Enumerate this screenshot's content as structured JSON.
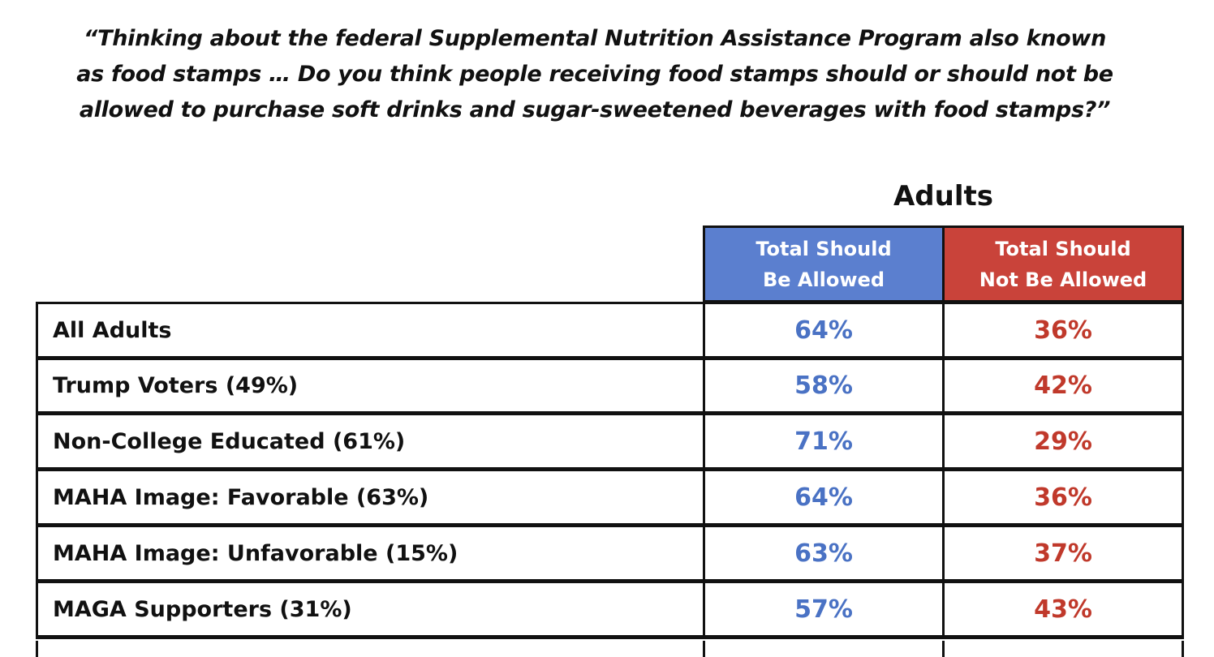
{
  "question": {
    "lines": [
      "“Thinking about the federal Supplemental Nutrition Assistance Program also known",
      "as food stamps … Do you think people receiving food stamps should or should not be",
      "allowed to purchase soft drinks and sugar-sweetened beverages with food stamps?”"
    ]
  },
  "chart_data": {
    "type": "table",
    "group_title": "Adults",
    "columns": [
      {
        "label_lines": [
          "Total Should",
          "Be Allowed"
        ],
        "color": "#5b7fcf",
        "text_color": "#4a72c4"
      },
      {
        "label_lines": [
          "Total Should",
          "Not Be Allowed"
        ],
        "color": "#c9433a",
        "text_color": "#c0392b"
      }
    ],
    "rows": [
      {
        "label": "All Adults",
        "values": [
          "64%",
          "36%"
        ]
      },
      {
        "label": "Trump Voters (49%)",
        "values": [
          "58%",
          "42%"
        ]
      },
      {
        "label": "Non-College Educated (61%)",
        "values": [
          "71%",
          "29%"
        ]
      },
      {
        "label": "MAHA Image: Favorable (63%)",
        "values": [
          "64%",
          "36%"
        ]
      },
      {
        "label": "MAHA Image: Unfavorable (15%)",
        "values": [
          "63%",
          "37%"
        ]
      },
      {
        "label": "MAGA Supporters (31%)",
        "values": [
          "57%",
          "43%"
        ]
      }
    ]
  }
}
